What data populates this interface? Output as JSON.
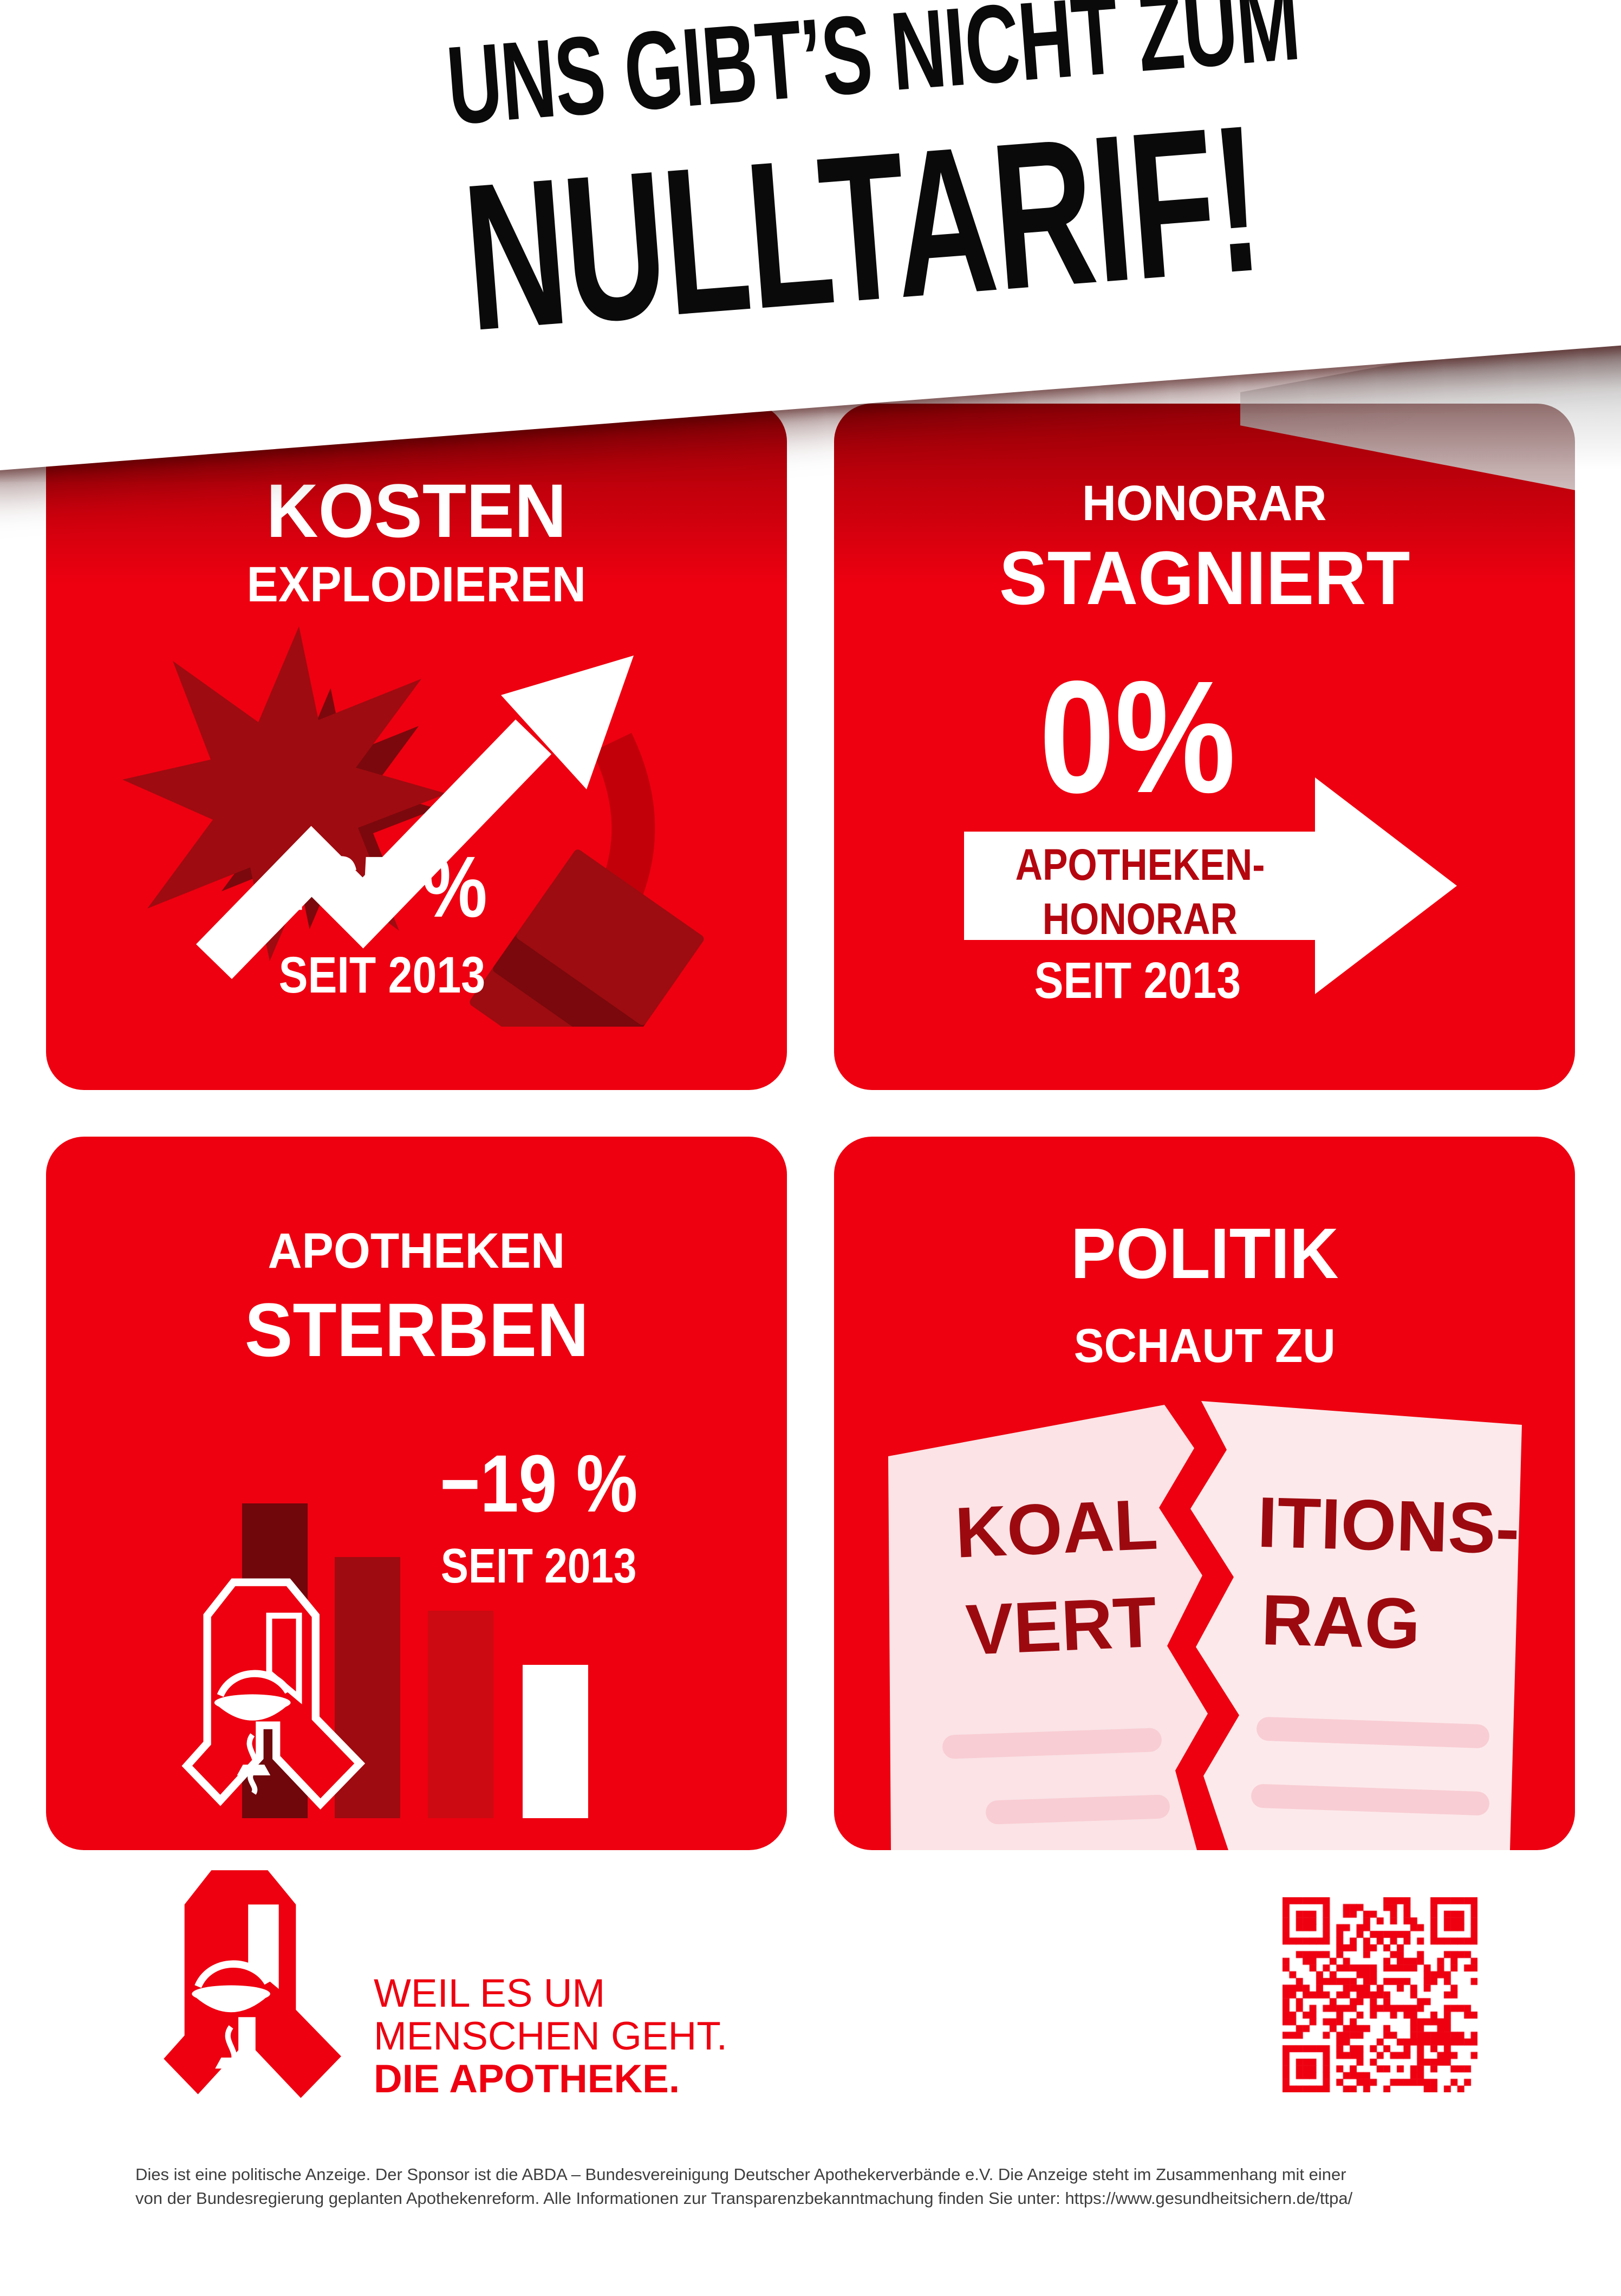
{
  "headline": {
    "line1": "UNS GIBT’S NICHT ZUM",
    "line2": "NULLTARIF!"
  },
  "cards": [
    {
      "title_big": "KOSTEN",
      "title_small": "EXPLODIEREN",
      "stat": "+65 %",
      "since": "SEIT 2013"
    },
    {
      "title_small": "HONORAR",
      "title_big": "STAGNIERT",
      "stat": "0%",
      "arrow_line1": "APOTHEKEN-",
      "arrow_line2": "HONORAR",
      "since": "SEIT 2013"
    },
    {
      "title_small": "APOTHEKEN",
      "title_big": "STERBEN",
      "stat": "−19 %",
      "since": "SEIT 2013"
    },
    {
      "title_big": "POLITIK",
      "title_small": "SCHAUT ZU",
      "doc_left_1": "KOAL",
      "doc_right_1": "ITIONS-",
      "doc_left_2": "VERT",
      "doc_right_2": "RAG"
    }
  ],
  "chart_data": {
    "type": "bar",
    "title": "APOTHEKEN STERBEN",
    "annotation": "−19 % SEIT 2013",
    "categories": [
      "",
      "",
      "",
      ""
    ],
    "values": [
      100,
      83,
      66,
      49
    ],
    "colors": [
      "#70070b",
      "#9e0b10",
      "#cb0b11",
      "#ffffff"
    ],
    "note": "decorative declining bar chart since 2013"
  },
  "stats": [
    {
      "label": "KOSTEN EXPLODIEREN",
      "value": "+65 %",
      "since": "SEIT 2013"
    },
    {
      "label": "HONORAR STAGNIERT (APOTHEKEN-HONORAR)",
      "value": "0%",
      "since": "SEIT 2013"
    },
    {
      "label": "APOTHEKEN STERBEN",
      "value": "−19 %",
      "since": "SEIT 2013"
    }
  ],
  "footer": {
    "tagline1": "WEIL ES UM",
    "tagline2": "MENSCHEN GEHT.",
    "tagline3": "DIE APOTHEKE."
  },
  "disclaimer": {
    "line1": "Dies ist eine politische Anzeige. Der Sponsor ist die ABDA – Bundesvereinigung Deutscher Apothekerverbände e.V. Die Anzeige steht im Zusammenhang mit einer",
    "line2": "von der Bundesregierung geplanten Apothekenreform. Alle Informationen zur Transparenzbekanntmachung finden Sie unter: https://www.gesundheitsichern.de/ttpa/"
  },
  "icons": {
    "explosion": "explosion-icon",
    "growth_arrow": "growth-arrow-icon",
    "paper_stack": "paper-stack-icon",
    "right_arrow": "right-arrow-icon",
    "bar_chart": "bar-chart-icon",
    "apotheke_logo": "apotheke-a-logo-icon",
    "torn_document": "torn-document-icon",
    "qr": "qr-code"
  },
  "colors": {
    "card_red": "#ee0010",
    "dark_red": "#9c0b10",
    "darker_red": "#7a080c",
    "mid_red": "#c2000a",
    "doc_text_red": "#9c0a0f",
    "arrow_text_red": "#b5060f",
    "paper_pink": "#fbe3e6",
    "paper_line_pink": "#f8cdd3",
    "headline_black": "#0a0a0a",
    "disclaimer_gray": "#3e3e3e"
  }
}
